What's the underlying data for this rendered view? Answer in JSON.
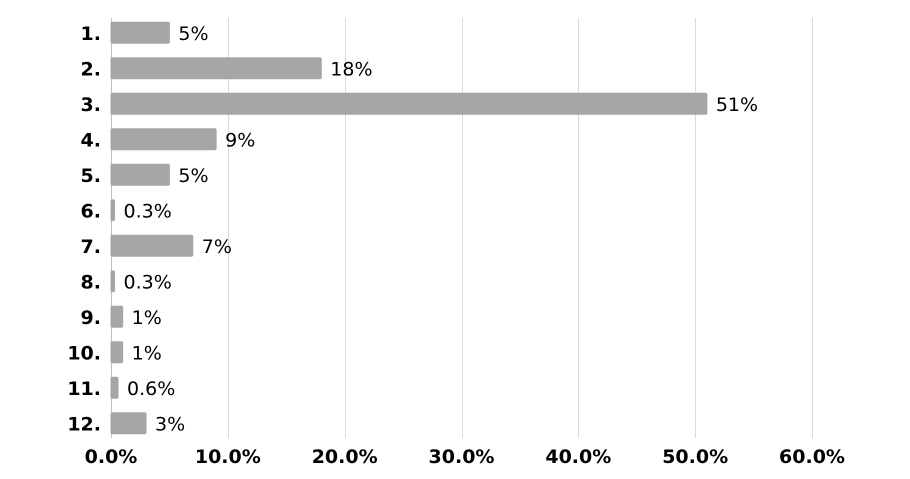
{
  "chart_data": {
    "type": "bar",
    "orientation": "horizontal",
    "categories": [
      "1.",
      "2.",
      "3.",
      "4.",
      "5.",
      "6.",
      "7.",
      "8.",
      "9.",
      "10.",
      "11.",
      "12."
    ],
    "values": [
      5,
      18,
      51,
      9,
      5,
      0.3,
      7,
      0.3,
      1,
      1,
      0.6,
      3
    ],
    "data_labels": [
      "5%",
      "18%",
      "51%",
      "9%",
      "5%",
      "0.3%",
      "7%",
      "0.3%",
      "1%",
      "1%",
      "0.6%",
      "3%"
    ],
    "x_ticks": [
      0,
      10,
      20,
      30,
      40,
      50,
      60
    ],
    "x_tick_labels": [
      "0.0%",
      "10.0%",
      "20.0%",
      "30.0%",
      "40.0%",
      "50.0%",
      "60.0%"
    ],
    "xlim": [
      0,
      60
    ],
    "title": "",
    "xlabel": "",
    "ylabel": "",
    "grid": "vertical",
    "legend": "none",
    "colors": {
      "bar": "#a6a6a6",
      "grid": "#d9d9d9",
      "text": "#000000"
    }
  }
}
